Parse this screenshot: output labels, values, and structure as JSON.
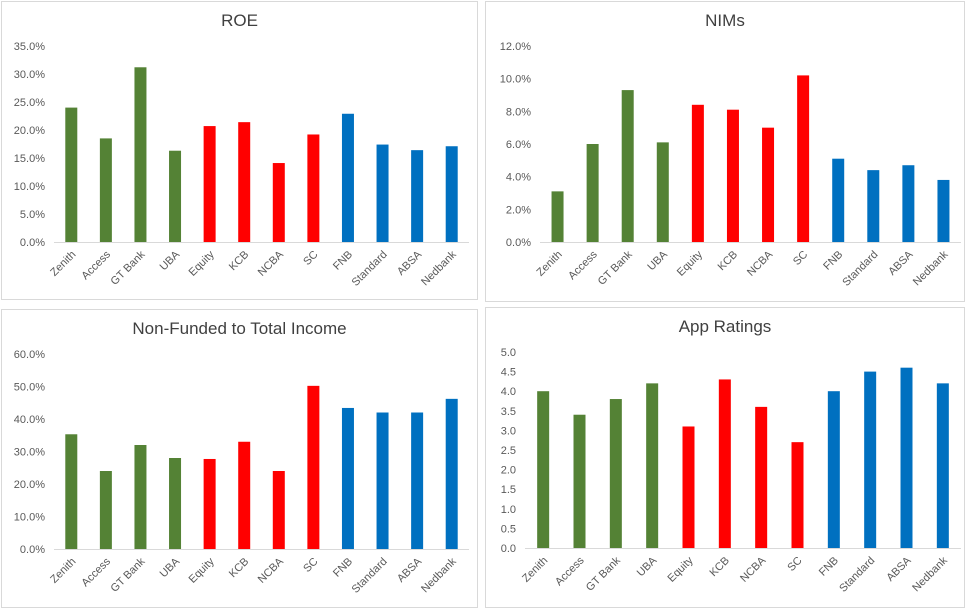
{
  "colors": {
    "green": "#548235",
    "red": "#ff0000",
    "blue": "#0070c0",
    "axis": "#d9d9d9",
    "text": "#595959"
  },
  "chart_data": [
    {
      "type": "bar",
      "title": "ROE",
      "categories": [
        "Zenith",
        "Access",
        "GT Bank",
        "UBA",
        "Equity",
        "KCB",
        "NCBA",
        "SC",
        "FNB",
        "Standard",
        "ABSA",
        "Nedbank"
      ],
      "values": [
        0.24,
        0.185,
        0.312,
        0.163,
        0.207,
        0.214,
        0.141,
        0.192,
        0.229,
        0.174,
        0.164,
        0.171
      ],
      "bar_colors": [
        "green",
        "green",
        "green",
        "green",
        "red",
        "red",
        "red",
        "red",
        "blue",
        "blue",
        "blue",
        "blue"
      ],
      "ylim": [
        0,
        0.35
      ],
      "yticks": [
        0,
        0.05,
        0.1,
        0.15,
        0.2,
        0.25,
        0.3,
        0.35
      ],
      "ytick_labels": [
        "0.0%",
        "5.0%",
        "10.0%",
        "15.0%",
        "20.0%",
        "25.0%",
        "30.0%",
        "35.0%"
      ],
      "gridlines": false,
      "legend": "none"
    },
    {
      "type": "bar",
      "title": "NIMs",
      "categories": [
        "Zenith",
        "Access",
        "GT Bank",
        "UBA",
        "Equity",
        "KCB",
        "NCBA",
        "SC",
        "FNB",
        "Standard",
        "ABSA",
        "Nedbank"
      ],
      "values": [
        0.031,
        0.06,
        0.093,
        0.061,
        0.084,
        0.081,
        0.07,
        0.102,
        0.051,
        0.044,
        0.047,
        0.038
      ],
      "bar_colors": [
        "green",
        "green",
        "green",
        "green",
        "red",
        "red",
        "red",
        "red",
        "blue",
        "blue",
        "blue",
        "blue"
      ],
      "ylim": [
        0,
        0.12
      ],
      "yticks": [
        0,
        0.02,
        0.04,
        0.06,
        0.08,
        0.1,
        0.12
      ],
      "ytick_labels": [
        "0.0%",
        "2.0%",
        "4.0%",
        "6.0%",
        "8.0%",
        "10.0%",
        "12.0%"
      ],
      "gridlines": false,
      "legend": "none"
    },
    {
      "type": "bar",
      "title": "Non-Funded to Total Income",
      "categories": [
        "Zenith",
        "Access",
        "GT Bank",
        "UBA",
        "Equity",
        "KCB",
        "NCBA",
        "SC",
        "FNB",
        "Standard",
        "ABSA",
        "Nedbank"
      ],
      "values": [
        0.353,
        0.24,
        0.32,
        0.28,
        0.277,
        0.33,
        0.24,
        0.502,
        0.434,
        0.42,
        0.42,
        0.462
      ],
      "bar_colors": [
        "green",
        "green",
        "green",
        "green",
        "red",
        "red",
        "red",
        "red",
        "blue",
        "blue",
        "blue",
        "blue"
      ],
      "ylim": [
        0,
        0.6
      ],
      "yticks": [
        0,
        0.1,
        0.2,
        0.3,
        0.4,
        0.5,
        0.6
      ],
      "ytick_labels": [
        "0.0%",
        "10.0%",
        "20.0%",
        "30.0%",
        "40.0%",
        "50.0%",
        "60.0%"
      ],
      "gridlines": false,
      "legend": "none"
    },
    {
      "type": "bar",
      "title": "App Ratings",
      "categories": [
        "Zenith",
        "Access",
        "GT Bank",
        "UBA",
        "Equity",
        "KCB",
        "NCBA",
        "SC",
        "FNB",
        "Standard",
        "ABSA",
        "Nedbank"
      ],
      "values": [
        4.0,
        3.4,
        3.8,
        4.2,
        3.1,
        4.3,
        3.6,
        2.7,
        4.0,
        4.5,
        4.6,
        4.2
      ],
      "bar_colors": [
        "green",
        "green",
        "green",
        "green",
        "red",
        "red",
        "red",
        "red",
        "blue",
        "blue",
        "blue",
        "blue"
      ],
      "ylim": [
        0,
        5.0
      ],
      "yticks": [
        0,
        0.5,
        1.0,
        1.5,
        2.0,
        2.5,
        3.0,
        3.5,
        4.0,
        4.5,
        5.0
      ],
      "ytick_labels": [
        "0.0",
        "0.5",
        "1.0",
        "1.5",
        "2.0",
        "2.5",
        "3.0",
        "3.5",
        "4.0",
        "4.5",
        "5.0"
      ],
      "gridlines": false,
      "legend": "none"
    }
  ]
}
